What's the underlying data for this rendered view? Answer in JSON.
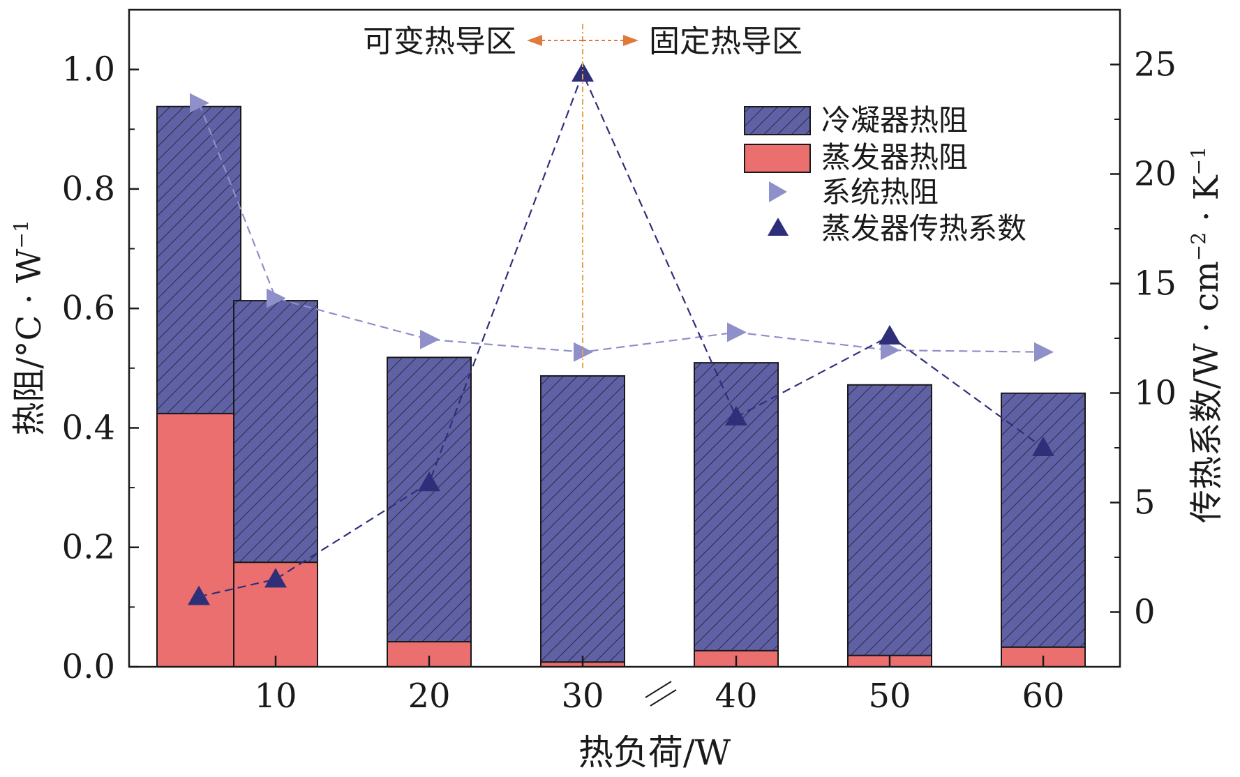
{
  "chart_data": {
    "type": "bar",
    "x": [
      5,
      10,
      20,
      30,
      40,
      50,
      60
    ],
    "xlabel": "热负荷/W",
    "xticks": [
      "10",
      "20",
      "30",
      "40",
      "50",
      "60"
    ],
    "ylabel": "热阻/°C · W",
    "ylabel_sup": "−1",
    "ylim": [
      0,
      1.1
    ],
    "yticks": [
      "0.0",
      "0.2",
      "0.4",
      "0.6",
      "0.8",
      "1.0"
    ],
    "y2label": "传热系数/W · cm",
    "y2label_sup1": "−2",
    "y2label_mid": " · K",
    "y2label_sup2": "−1",
    "y2lim": [
      -2.5,
      27.5
    ],
    "y2ticks": [
      "0",
      "5",
      "10",
      "15",
      "20",
      "25"
    ],
    "series": [
      {
        "name": "冷凝器热阻",
        "kind": "bar",
        "stacked_on": "蒸发器热阻",
        "color": "#5f61a4",
        "hatch": true,
        "values": [
          0.514,
          0.438,
          0.476,
          0.479,
          0.482,
          0.453,
          0.425
        ]
      },
      {
        "name": "蒸发器热阻",
        "kind": "bar",
        "color": "#ec6f6f",
        "values": [
          0.424,
          0.175,
          0.042,
          0.008,
          0.027,
          0.019,
          0.033
        ]
      },
      {
        "name": "系统热阻",
        "kind": "line",
        "axis": "left",
        "marker": "triangle-right",
        "color": "#8f8fc9",
        "values": [
          0.944,
          0.617,
          0.548,
          0.527,
          0.56,
          0.53,
          0.527
        ]
      },
      {
        "name": "蒸发器传热系数",
        "kind": "line",
        "axis": "right",
        "marker": "triangle-up",
        "color": "#2e2f78",
        "values": [
          0.7,
          1.5,
          5.9,
          24.6,
          8.9,
          12.6,
          7.5
        ]
      }
    ],
    "annotations": {
      "left_region": "可变热导区",
      "right_region": "固定热导区",
      "divider_x": 30
    },
    "legend_position": "top-right"
  }
}
